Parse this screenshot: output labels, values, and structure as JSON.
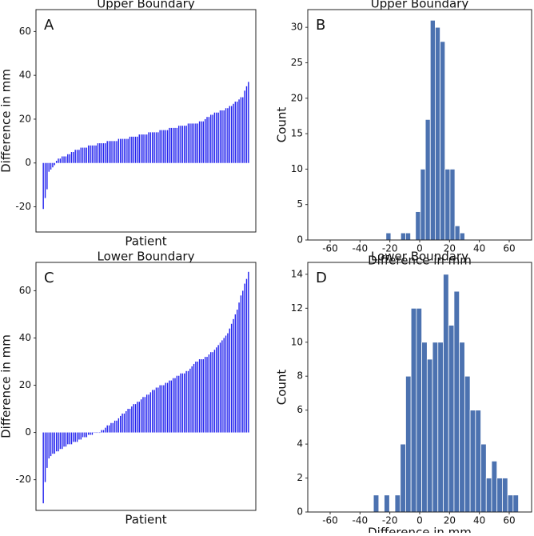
{
  "chart_data": [
    {
      "type": "bar",
      "panel_label": "A",
      "title": "Upper Boundary",
      "xlabel": "Patient",
      "ylabel": "Difference in mm",
      "color": "#2222ee",
      "values": [
        -21,
        -16,
        -12,
        -4,
        -3,
        -2,
        -1,
        1,
        2,
        2,
        3,
        3,
        3,
        4,
        4,
        5,
        5,
        6,
        6,
        6,
        7,
        7,
        7,
        7,
        8,
        8,
        8,
        8,
        8,
        9,
        9,
        9,
        9,
        9,
        10,
        10,
        10,
        10,
        10,
        10,
        11,
        11,
        11,
        11,
        11,
        11,
        12,
        12,
        12,
        12,
        12,
        13,
        13,
        13,
        13,
        13,
        14,
        14,
        14,
        14,
        14,
        14,
        15,
        15,
        15,
        15,
        15,
        16,
        16,
        16,
        16,
        16,
        17,
        17,
        17,
        17,
        17,
        18,
        18,
        18,
        18,
        18,
        18,
        19,
        19,
        19,
        20,
        21,
        21,
        22,
        22,
        23,
        23,
        23,
        24,
        24,
        24,
        25,
        25,
        26,
        26,
        27,
        28,
        28,
        29,
        30,
        30,
        33,
        35,
        37
      ],
      "ylim": [
        -31.5,
        70
      ],
      "yticks": [
        -20,
        0,
        20,
        40,
        60
      ]
    },
    {
      "type": "histogram",
      "panel_label": "B",
      "title": "Upper Boundary",
      "xlabel": "Difference in mm",
      "ylabel": "Count",
      "color": "#4c72b0",
      "bins": [
        -22.6,
        -19.3,
        -16,
        -12.7,
        -9.4,
        -6.1,
        -2.8,
        0.5,
        3.8,
        7.1,
        10.4,
        13.7,
        17,
        20.3,
        23.6,
        26.9,
        30.2
      ],
      "values": [
        1,
        0,
        0,
        1,
        1,
        0,
        4,
        10,
        17,
        31,
        30,
        28,
        10,
        10,
        2,
        1
      ],
      "xlim": [
        -75,
        75
      ],
      "xticks": [
        -60,
        -40,
        -20,
        0,
        20,
        40,
        60
      ],
      "ylim": [
        0,
        32.5
      ],
      "yticks": [
        0,
        5,
        10,
        15,
        20,
        25,
        30
      ]
    },
    {
      "type": "bar",
      "panel_label": "C",
      "title": "Lower Boundary",
      "xlabel": "Patient",
      "ylabel": "Difference in mm",
      "color": "#2222ee",
      "values": [
        -30,
        -21,
        -15,
        -11,
        -10,
        -9,
        -9,
        -8,
        -8,
        -7,
        -7,
        -6,
        -6,
        -5,
        -5,
        -5,
        -4,
        -4,
        -4,
        -3,
        -3,
        -2,
        -2,
        -2,
        -1,
        -1,
        -1,
        0,
        0,
        0,
        0,
        1,
        1,
        2,
        3,
        3,
        4,
        4,
        5,
        5,
        6,
        7,
        8,
        8,
        9,
        10,
        10,
        11,
        12,
        12,
        13,
        13,
        14,
        15,
        15,
        16,
        16,
        17,
        18,
        18,
        19,
        19,
        20,
        20,
        20,
        21,
        21,
        22,
        22,
        23,
        23,
        24,
        24,
        25,
        25,
        25,
        26,
        26,
        27,
        28,
        29,
        30,
        30,
        31,
        31,
        31,
        32,
        32,
        33,
        34,
        34,
        35,
        36,
        37,
        38,
        39,
        40,
        41,
        42,
        44,
        46,
        48,
        50,
        52,
        55,
        58,
        60,
        63,
        65,
        68
      ],
      "ylim": [
        -33,
        72
      ],
      "yticks": [
        -20,
        0,
        20,
        40,
        60
      ]
    },
    {
      "type": "histogram",
      "panel_label": "D",
      "title": "Lower Boundary",
      "xlabel": "Difference in mm",
      "ylabel": "Count",
      "color": "#4c72b0",
      "bins": [
        -31,
        -27.4,
        -23.8,
        -20.2,
        -16.6,
        -13,
        -9.4,
        -5.8,
        -2.2,
        1.4,
        5,
        8.6,
        12.2,
        15.8,
        19.4,
        23,
        26.6,
        30.2,
        33.8,
        37.4,
        41,
        44.6,
        48.2,
        51.8,
        55.4,
        59,
        62.6,
        66.2
      ],
      "values": [
        1,
        0,
        1,
        0,
        1,
        4,
        8,
        12,
        12,
        10,
        9,
        10,
        10,
        14,
        11,
        13,
        10,
        8,
        6,
        6,
        4,
        2,
        3,
        2,
        2,
        1,
        1
      ],
      "xlim": [
        -75,
        75
      ],
      "xticks": [
        -60,
        -40,
        -20,
        0,
        20,
        40,
        60
      ],
      "ylim": [
        0,
        14.7
      ],
      "yticks": [
        0,
        2,
        4,
        6,
        8,
        10,
        12,
        14
      ]
    }
  ]
}
